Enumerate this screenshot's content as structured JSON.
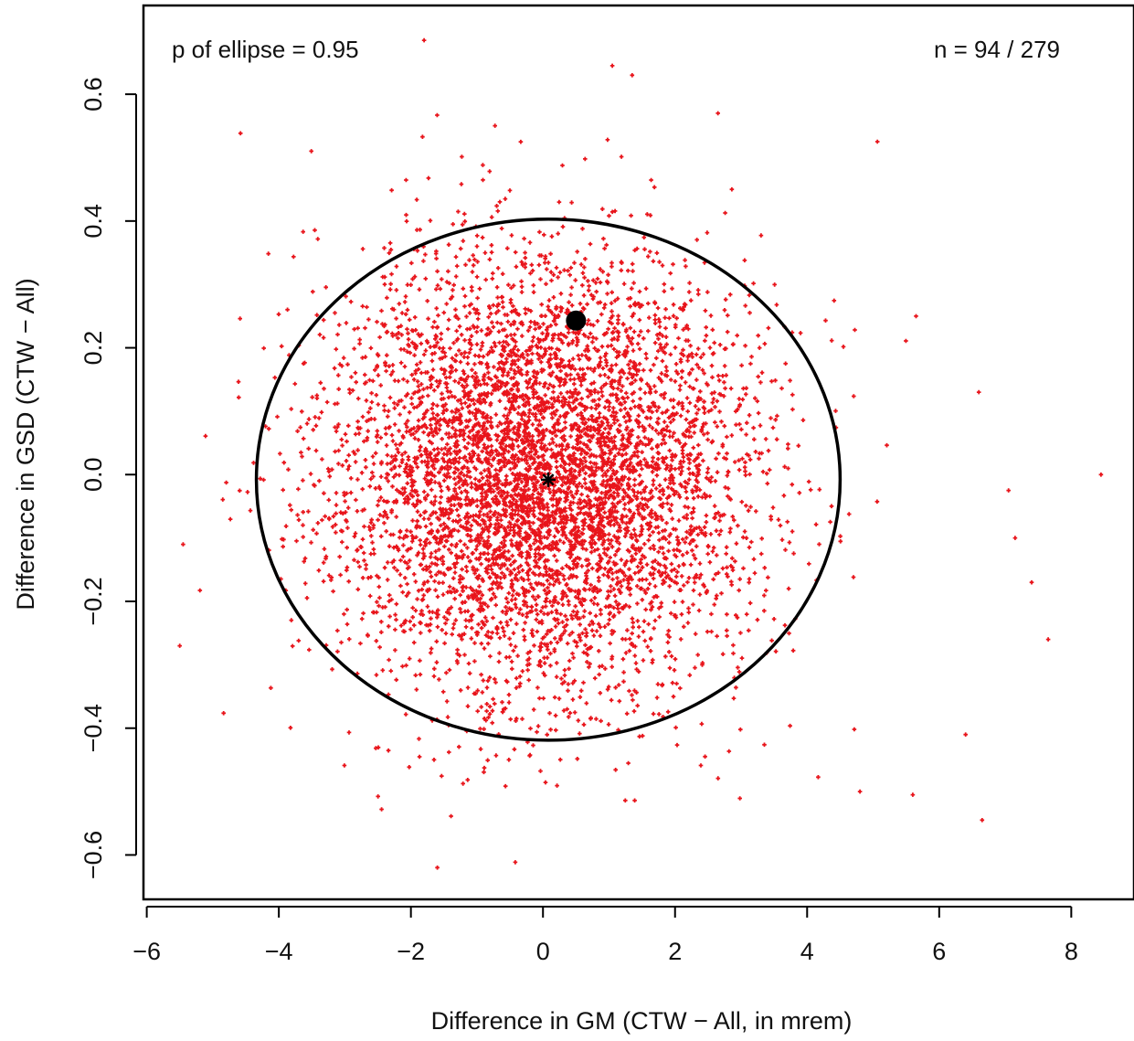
{
  "chart_data": {
    "type": "scatter",
    "title": "",
    "xlabel": "Difference in GM (CTW − All, in mrem)",
    "ylabel": "Difference in GSD (CTW − All)",
    "xlim": [
      -6.05,
      8.95
    ],
    "ylim": [
      -0.67,
      0.74
    ],
    "x_ticks": [
      -6,
      -4,
      -2,
      0,
      2,
      4,
      6,
      8
    ],
    "x_tick_labels": [
      "−6",
      "−4",
      "−2",
      "0",
      "2",
      "4",
      "6",
      "8"
    ],
    "y_ticks": [
      -0.6,
      -0.4,
      -0.2,
      0.0,
      0.2,
      0.4,
      0.6
    ],
    "y_tick_labels": [
      "−0.6",
      "−0.4",
      "−0.2",
      "0.0",
      "0.2",
      "0.4",
      "0.6"
    ],
    "grid": false,
    "annotations": {
      "p_label": "p of ellipse = 0.95",
      "n_label": "n = 94 / 279"
    },
    "scatter_cloud": {
      "count": 6000,
      "center": [
        0.0,
        0.0
      ],
      "sd": [
        1.55,
        0.17
      ],
      "color": "#e8141b"
    },
    "notable_points": [
      {
        "x": 8.45,
        "y": 0.0
      },
      {
        "x": 7.65,
        "y": -0.26
      },
      {
        "x": 7.4,
        "y": -0.17
      },
      {
        "x": 7.15,
        "y": -0.1
      },
      {
        "x": 7.05,
        "y": -0.025
      },
      {
        "x": 6.65,
        "y": -0.545
      },
      {
        "x": 6.4,
        "y": -0.41
      },
      {
        "x": 5.6,
        "y": -0.505
      },
      {
        "x": -5.5,
        "y": -0.27
      },
      {
        "x": -5.45,
        "y": -0.11
      },
      {
        "x": -1.6,
        "y": -0.62
      },
      {
        "x": -1.8,
        "y": 0.685
      },
      {
        "x": 1.05,
        "y": 0.645
      },
      {
        "x": 1.35,
        "y": 0.63
      },
      {
        "x": 2.65,
        "y": 0.57
      },
      {
        "x": 4.8,
        "y": -0.5
      },
      {
        "x": 6.6,
        "y": 0.13
      },
      {
        "x": 5.65,
        "y": 0.25
      }
    ],
    "ellipse": {
      "center": [
        0.08,
        -0.008
      ],
      "semi_x": 4.42,
      "semi_y": 0.411,
      "color": "#000000"
    },
    "center_marker": {
      "x": 0.08,
      "y": -0.008,
      "symbol": "asterisk"
    },
    "observed_point": {
      "x": 0.5,
      "y": 0.243,
      "symbol": "filled-circle"
    }
  }
}
